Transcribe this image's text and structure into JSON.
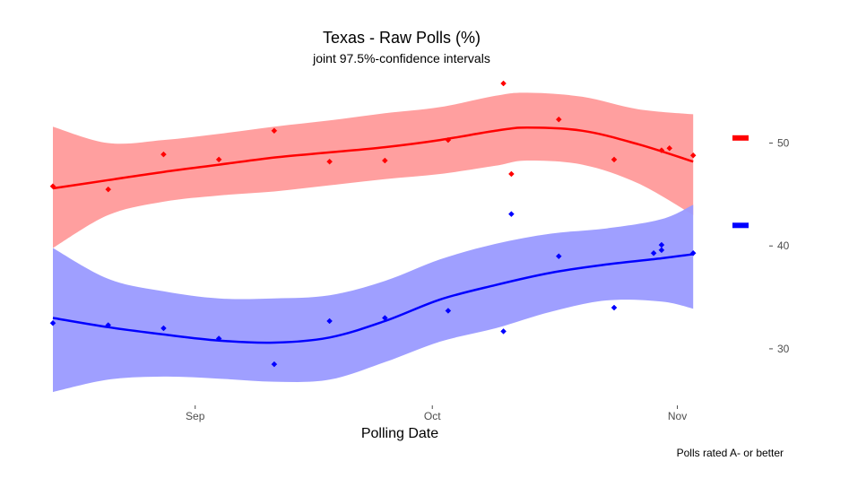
{
  "chart_data": {
    "type": "scatter",
    "title": "Texas - Raw Polls (%)",
    "subtitle": "joint 97.5%-confidence intervals",
    "xlabel": "Polling Date",
    "ylabel": "",
    "caption": "Polls rated A- or better",
    "xlim": [
      "2020-08-14",
      "2020-11-04"
    ],
    "ylim": [
      24.5,
      56.5
    ],
    "x_ticks": [
      {
        "date": "2020-09-01",
        "label": "Sep"
      },
      {
        "date": "2020-10-01",
        "label": "Oct"
      },
      {
        "date": "2020-11-01",
        "label": "Nov"
      }
    ],
    "y_ticks": [
      {
        "value": 30,
        "label": "30"
      },
      {
        "value": 40,
        "label": "40"
      },
      {
        "value": 50,
        "label": "50"
      }
    ],
    "grid": false,
    "legend_position": "right",
    "series": [
      {
        "color": "#ff0000",
        "band_color": "#ff9a9a",
        "legend_value": 50.5,
        "points": [
          {
            "x": "2020-08-14",
            "y": 45.8
          },
          {
            "x": "2020-08-21",
            "y": 45.5
          },
          {
            "x": "2020-08-28",
            "y": 48.9
          },
          {
            "x": "2020-09-04",
            "y": 48.4
          },
          {
            "x": "2020-09-11",
            "y": 51.2
          },
          {
            "x": "2020-09-18",
            "y": 48.2
          },
          {
            "x": "2020-09-25",
            "y": 48.3
          },
          {
            "x": "2020-10-03",
            "y": 50.3
          },
          {
            "x": "2020-10-10",
            "y": 55.8
          },
          {
            "x": "2020-10-11",
            "y": 47.0
          },
          {
            "x": "2020-10-17",
            "y": 52.3
          },
          {
            "x": "2020-10-24",
            "y": 48.4
          },
          {
            "x": "2020-10-30",
            "y": 49.3
          },
          {
            "x": "2020-10-31",
            "y": 49.5
          },
          {
            "x": "2020-11-03",
            "y": 48.8
          }
        ],
        "trend": [
          {
            "x": "2020-08-14",
            "y": 45.6,
            "lo": 39.8,
            "hi": 51.6
          },
          {
            "x": "2020-08-21",
            "y": 46.4,
            "lo": 43.0,
            "hi": 50.0
          },
          {
            "x": "2020-08-28",
            "y": 47.2,
            "lo": 44.3,
            "hi": 50.3
          },
          {
            "x": "2020-09-04",
            "y": 47.9,
            "lo": 44.9,
            "hi": 50.9
          },
          {
            "x": "2020-09-11",
            "y": 48.6,
            "lo": 45.3,
            "hi": 51.6
          },
          {
            "x": "2020-09-18",
            "y": 49.1,
            "lo": 45.9,
            "hi": 52.2
          },
          {
            "x": "2020-09-25",
            "y": 49.6,
            "lo": 46.5,
            "hi": 52.9
          },
          {
            "x": "2020-10-02",
            "y": 50.3,
            "lo": 47.0,
            "hi": 53.5
          },
          {
            "x": "2020-10-09",
            "y": 51.2,
            "lo": 47.8,
            "hi": 54.6
          },
          {
            "x": "2020-10-13",
            "y": 51.5,
            "lo": 48.3,
            "hi": 54.9
          },
          {
            "x": "2020-10-20",
            "y": 51.2,
            "lo": 47.9,
            "hi": 54.5
          },
          {
            "x": "2020-10-27",
            "y": 49.9,
            "lo": 46.1,
            "hi": 53.3
          },
          {
            "x": "2020-11-03",
            "y": 48.2,
            "lo": 43.0,
            "hi": 52.8
          }
        ]
      },
      {
        "color": "#0000ff",
        "band_color": "#9a9aff",
        "legend_value": 42.0,
        "points": [
          {
            "x": "2020-08-14",
            "y": 32.5
          },
          {
            "x": "2020-08-21",
            "y": 32.3
          },
          {
            "x": "2020-08-28",
            "y": 32.0
          },
          {
            "x": "2020-09-04",
            "y": 31.0
          },
          {
            "x": "2020-09-11",
            "y": 28.5
          },
          {
            "x": "2020-09-18",
            "y": 32.7
          },
          {
            "x": "2020-09-25",
            "y": 33.0
          },
          {
            "x": "2020-10-03",
            "y": 33.7
          },
          {
            "x": "2020-10-10",
            "y": 31.7
          },
          {
            "x": "2020-10-11",
            "y": 43.1
          },
          {
            "x": "2020-10-17",
            "y": 39.0
          },
          {
            "x": "2020-10-24",
            "y": 34.0
          },
          {
            "x": "2020-10-29",
            "y": 39.3
          },
          {
            "x": "2020-10-30",
            "y": 39.6
          },
          {
            "x": "2020-10-30",
            "y": 40.1
          },
          {
            "x": "2020-11-03",
            "y": 39.3
          }
        ],
        "trend": [
          {
            "x": "2020-08-14",
            "y": 33.0,
            "lo": 25.8,
            "hi": 39.8
          },
          {
            "x": "2020-08-21",
            "y": 32.1,
            "lo": 27.0,
            "hi": 36.8
          },
          {
            "x": "2020-08-28",
            "y": 31.4,
            "lo": 27.3,
            "hi": 35.6
          },
          {
            "x": "2020-09-04",
            "y": 30.8,
            "lo": 27.1,
            "hi": 34.9
          },
          {
            "x": "2020-09-11",
            "y": 30.6,
            "lo": 26.8,
            "hi": 34.9
          },
          {
            "x": "2020-09-18",
            "y": 31.1,
            "lo": 27.0,
            "hi": 35.2
          },
          {
            "x": "2020-09-25",
            "y": 32.7,
            "lo": 28.7,
            "hi": 36.6
          },
          {
            "x": "2020-10-02",
            "y": 34.8,
            "lo": 30.7,
            "hi": 38.7
          },
          {
            "x": "2020-10-09",
            "y": 36.2,
            "lo": 32.0,
            "hi": 40.2
          },
          {
            "x": "2020-10-16",
            "y": 37.4,
            "lo": 33.6,
            "hi": 41.2
          },
          {
            "x": "2020-10-23",
            "y": 38.2,
            "lo": 34.7,
            "hi": 41.7
          },
          {
            "x": "2020-10-30",
            "y": 38.8,
            "lo": 34.6,
            "hi": 42.6
          },
          {
            "x": "2020-11-03",
            "y": 39.2,
            "lo": 33.9,
            "hi": 44.0
          }
        ]
      }
    ]
  }
}
